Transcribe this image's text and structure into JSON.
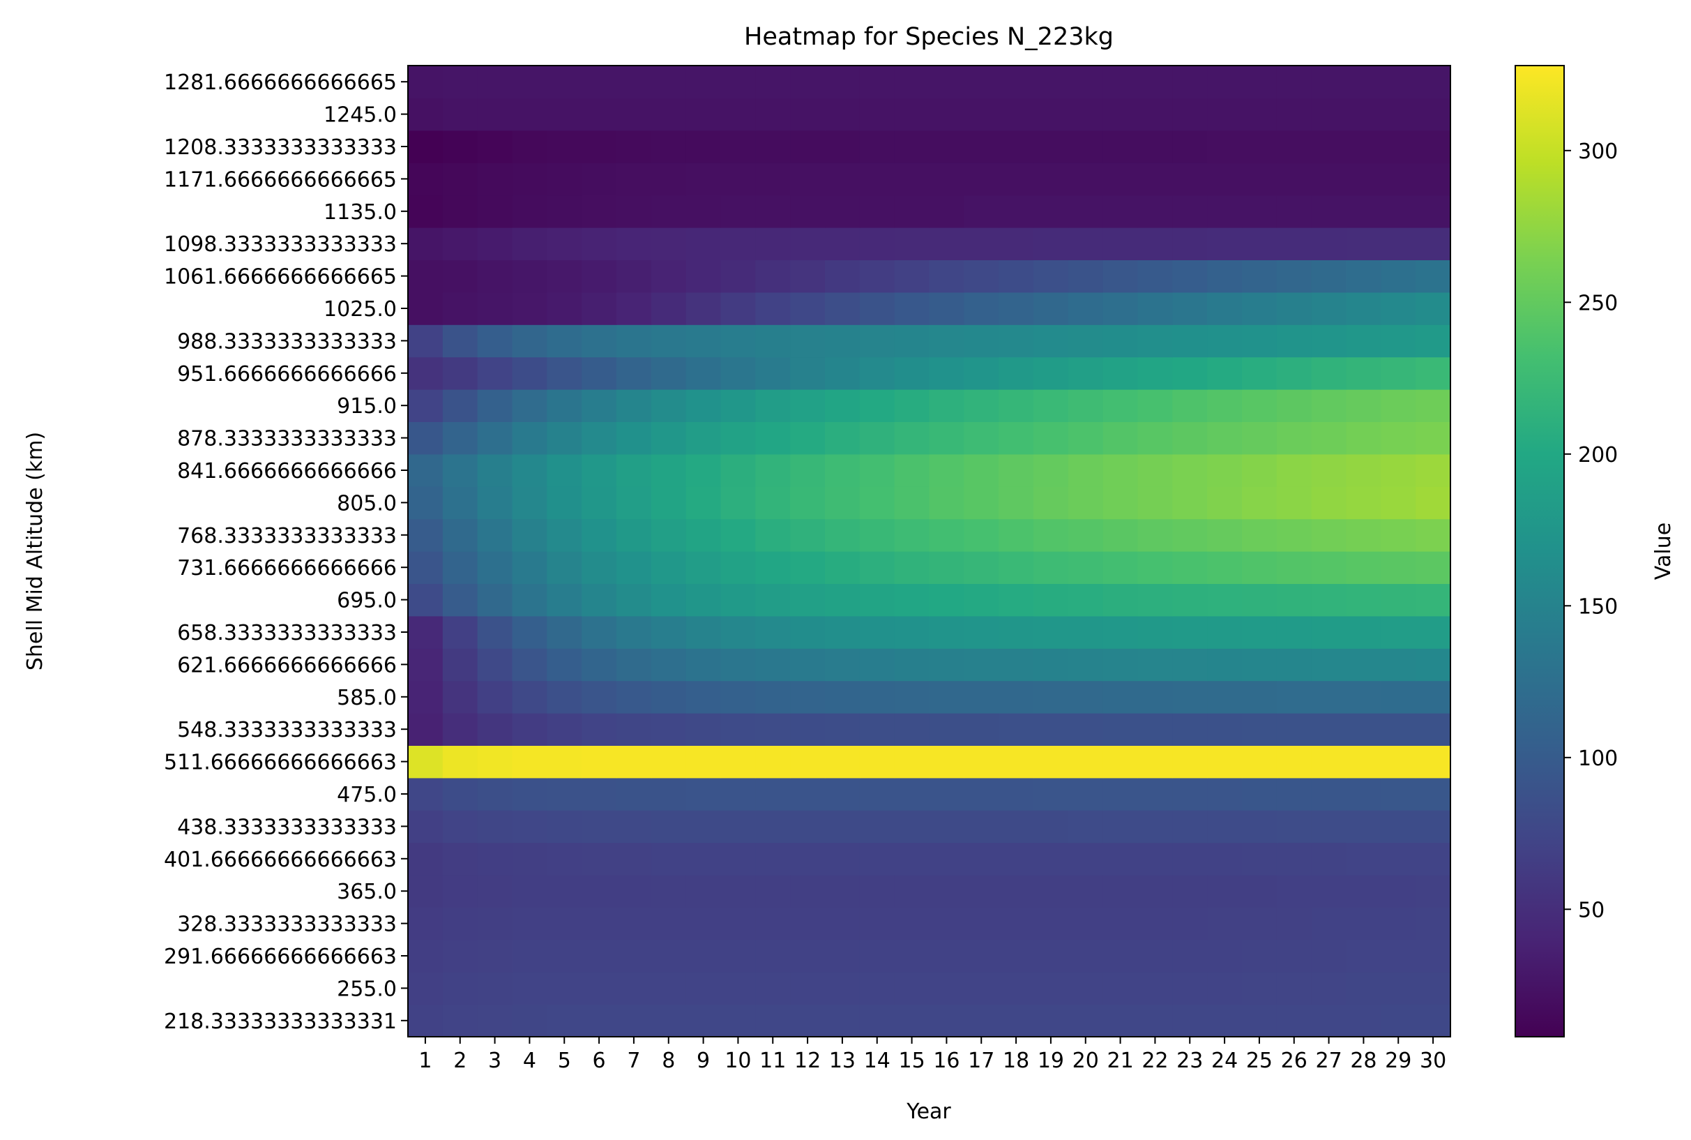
{
  "chart_data": {
    "type": "heatmap",
    "title": "Heatmap for Species N_223kg",
    "xlabel": "Year",
    "ylabel": "Shell Mid Altitude (km)",
    "colorbar_label": "Value",
    "colormap": "viridis",
    "vmin": 8,
    "vmax": 328,
    "colorbar_ticks": [
      50,
      100,
      150,
      200,
      250,
      300
    ],
    "x_categories": [
      "1",
      "2",
      "3",
      "4",
      "5",
      "6",
      "7",
      "8",
      "9",
      "10",
      "11",
      "12",
      "13",
      "14",
      "15",
      "16",
      "17",
      "18",
      "19",
      "20",
      "21",
      "22",
      "23",
      "24",
      "25",
      "26",
      "27",
      "28",
      "29",
      "30"
    ],
    "y_categories": [
      "218.33333333333331",
      "255.0",
      "291.66666666666663",
      "328.3333333333333",
      "365.0",
      "401.66666666666663",
      "438.3333333333333",
      "475.0",
      "511.66666666666663",
      "548.3333333333333",
      "585.0",
      "621.6666666666666",
      "658.3333333333333",
      "695.0",
      "731.6666666666666",
      "768.3333333333333",
      "805.0",
      "841.6666666666666",
      "878.3333333333333",
      "915.0",
      "951.6666666666666",
      "988.3333333333333",
      "1025.0",
      "1061.6666666666665",
      "1098.3333333333333",
      "1135.0",
      "1171.6666666666665",
      "1208.3333333333333",
      "1245.0",
      "1281.6666666666665"
    ],
    "values": [
      [
        70,
        72,
        73,
        74,
        75,
        75,
        75,
        75,
        75,
        75,
        75,
        75,
        75,
        75,
        75,
        75,
        75,
        75,
        75,
        75,
        75,
        75,
        75,
        75,
        75,
        76,
        76,
        76,
        77,
        77
      ],
      [
        68,
        70,
        71,
        72,
        72,
        72,
        72,
        72,
        72,
        72,
        72,
        72,
        72,
        72,
        72,
        72,
        72,
        72,
        72,
        72,
        72,
        72,
        72,
        72,
        73,
        73,
        73,
        74,
        74,
        74
      ],
      [
        66,
        68,
        69,
        70,
        70,
        70,
        70,
        70,
        70,
        70,
        70,
        70,
        70,
        70,
        70,
        70,
        70,
        70,
        70,
        70,
        70,
        70,
        70,
        70,
        71,
        71,
        71,
        72,
        72,
        72
      ],
      [
        64,
        66,
        67,
        68,
        68,
        68,
        68,
        68,
        68,
        68,
        68,
        68,
        68,
        68,
        68,
        68,
        68,
        68,
        68,
        68,
        68,
        68,
        68,
        69,
        69,
        69,
        70,
        70,
        70,
        71
      ],
      [
        62,
        64,
        65,
        66,
        66,
        66,
        66,
        67,
        67,
        67,
        67,
        67,
        67,
        67,
        67,
        67,
        67,
        67,
        67,
        67,
        67,
        67,
        67,
        67,
        67,
        68,
        68,
        68,
        68,
        69
      ],
      [
        62,
        65,
        66,
        67,
        68,
        69,
        69,
        70,
        70,
        70,
        70,
        70,
        70,
        70,
        70,
        70,
        70,
        70,
        70,
        70,
        70,
        70,
        70,
        70,
        71,
        71,
        71,
        72,
        72,
        72
      ],
      [
        68,
        72,
        74,
        76,
        77,
        78,
        78,
        79,
        79,
        79,
        79,
        79,
        79,
        79,
        79,
        79,
        79,
        79,
        79,
        80,
        80,
        80,
        80,
        80,
        80,
        81,
        81,
        81,
        82,
        82
      ],
      [
        76,
        82,
        85,
        87,
        88,
        89,
        90,
        90,
        91,
        91,
        91,
        91,
        91,
        91,
        91,
        91,
        91,
        91,
        92,
        92,
        92,
        92,
        92,
        92,
        93,
        93,
        93,
        93,
        94,
        94
      ],
      [
        312,
        320,
        322,
        324,
        324,
        325,
        325,
        325,
        325,
        325,
        325,
        325,
        325,
        325,
        325,
        325,
        325,
        325,
        325,
        325,
        325,
        325,
        325,
        325,
        325,
        325,
        325,
        325,
        325,
        325
      ],
      [
        38,
        50,
        58,
        64,
        68,
        72,
        74,
        76,
        78,
        80,
        81,
        82,
        83,
        84,
        84,
        85,
        85,
        86,
        86,
        86,
        87,
        87,
        87,
        87,
        88,
        88,
        88,
        88,
        89,
        89
      ],
      [
        40,
        56,
        68,
        78,
        86,
        92,
        97,
        101,
        104,
        107,
        109,
        111,
        112,
        113,
        114,
        115,
        116,
        116,
        117,
        117,
        118,
        118,
        119,
        119,
        119,
        120,
        120,
        120,
        121,
        121
      ],
      [
        42,
        62,
        78,
        92,
        103,
        112,
        119,
        124,
        129,
        133,
        136,
        139,
        141,
        143,
        145,
        146,
        147,
        148,
        149,
        150,
        151,
        152,
        152,
        153,
        154,
        154,
        155,
        155,
        155,
        156
      ],
      [
        45,
        68,
        88,
        104,
        117,
        128,
        137,
        144,
        150,
        155,
        159,
        163,
        166,
        168,
        170,
        172,
        174,
        175,
        176,
        177,
        178,
        179,
        180,
        181,
        182,
        182,
        183,
        183,
        184,
        184
      ],
      [
        80,
        100,
        117,
        131,
        143,
        153,
        162,
        169,
        175,
        180,
        185,
        189,
        192,
        195,
        197,
        200,
        202,
        204,
        206,
        207,
        209,
        210,
        211,
        212,
        213,
        214,
        215,
        216,
        217,
        218
      ],
      [
        92,
        110,
        126,
        139,
        151,
        161,
        170,
        178,
        185,
        191,
        197,
        202,
        206,
        210,
        214,
        217,
        220,
        223,
        226,
        228,
        231,
        233,
        235,
        237,
        239,
        241,
        242,
        244,
        245,
        246
      ],
      [
        100,
        118,
        134,
        147,
        159,
        170,
        179,
        187,
        195,
        202,
        208,
        213,
        218,
        222,
        226,
        230,
        233,
        237,
        240,
        242,
        245,
        248,
        250,
        252,
        255,
        257,
        259,
        261,
        263,
        265
      ],
      [
        110,
        127,
        142,
        155,
        167,
        177,
        186,
        195,
        203,
        210,
        216,
        222,
        227,
        232,
        236,
        241,
        244,
        248,
        252,
        255,
        258,
        261,
        264,
        267,
        270,
        272,
        275,
        277,
        279,
        282
      ],
      [
        115,
        131,
        145,
        157,
        168,
        178,
        187,
        195,
        202,
        209,
        215,
        221,
        226,
        231,
        236,
        240,
        244,
        248,
        251,
        255,
        258,
        261,
        264,
        266,
        269,
        272,
        274,
        276,
        278,
        280
      ],
      [
        95,
        111,
        125,
        138,
        149,
        159,
        168,
        176,
        184,
        191,
        197,
        203,
        208,
        213,
        218,
        222,
        226,
        230,
        234,
        237,
        241,
        244,
        247,
        250,
        252,
        255,
        257,
        260,
        262,
        264
      ],
      [
        72,
        90,
        106,
        120,
        132,
        143,
        153,
        162,
        170,
        177,
        184,
        190,
        196,
        201,
        206,
        211,
        215,
        219,
        223,
        227,
        231,
        234,
        238,
        241,
        244,
        247,
        250,
        252,
        255,
        257
      ],
      [
        55,
        62,
        72,
        82,
        92,
        101,
        110,
        118,
        126,
        133,
        140,
        147,
        153,
        159,
        164,
        169,
        174,
        179,
        183,
        187,
        192,
        196,
        199,
        203,
        207,
        210,
        214,
        217,
        220,
        223
      ],
      [
        70,
        90,
        103,
        113,
        121,
        127,
        132,
        136,
        139,
        142,
        145,
        147,
        149,
        151,
        153,
        155,
        157,
        158,
        160,
        162,
        163,
        165,
        167,
        168,
        170,
        172,
        174,
        176,
        178,
        180
      ],
      [
        22,
        24,
        26,
        28,
        31,
        35,
        40,
        47,
        55,
        63,
        70,
        77,
        84,
        90,
        96,
        101,
        106,
        111,
        116,
        121,
        125,
        130,
        134,
        138,
        142,
        146,
        150,
        154,
        158,
        161
      ],
      [
        22,
        23,
        25,
        27,
        29,
        32,
        35,
        39,
        43,
        47,
        52,
        56,
        61,
        65,
        69,
        74,
        78,
        82,
        86,
        90,
        94,
        98,
        102,
        106,
        110,
        114,
        118,
        122,
        126,
        130
      ],
      [
        26,
        29,
        32,
        35,
        37,
        39,
        41,
        42,
        43,
        44,
        44,
        45,
        45,
        45,
        46,
        46,
        46,
        46,
        47,
        47,
        47,
        47,
        47,
        48,
        48,
        48,
        48,
        49,
        49,
        49
      ],
      [
        12,
        14,
        16,
        18,
        19,
        20,
        21,
        22,
        22,
        23,
        23,
        23,
        23,
        23,
        23,
        23,
        24,
        24,
        24,
        24,
        24,
        24,
        24,
        24,
        24,
        24,
        24,
        24,
        24,
        24
      ],
      [
        13,
        14,
        16,
        17,
        18,
        19,
        20,
        20,
        21,
        21,
        21,
        22,
        22,
        22,
        22,
        22,
        22,
        22,
        22,
        22,
        22,
        22,
        22,
        22,
        22,
        22,
        22,
        22,
        22,
        22
      ],
      [
        8,
        10,
        12,
        14,
        15,
        15,
        16,
        17,
        17,
        18,
        18,
        18,
        18,
        19,
        19,
        19,
        19,
        19,
        19,
        19,
        19,
        19,
        19,
        20,
        20,
        20,
        20,
        20,
        20,
        20
      ],
      [
        23,
        24,
        24,
        24,
        24,
        24,
        24,
        24,
        24,
        24,
        24,
        24,
        24,
        24,
        24,
        24,
        24,
        24,
        24,
        24,
        24,
        24,
        24,
        24,
        24,
        24,
        24,
        24,
        24,
        24
      ],
      [
        25,
        26,
        26,
        26,
        26,
        26,
        26,
        26,
        26,
        26,
        26,
        26,
        26,
        26,
        26,
        26,
        26,
        26,
        26,
        26,
        26,
        26,
        26,
        26,
        26,
        26,
        26,
        26,
        26,
        26
      ]
    ]
  }
}
